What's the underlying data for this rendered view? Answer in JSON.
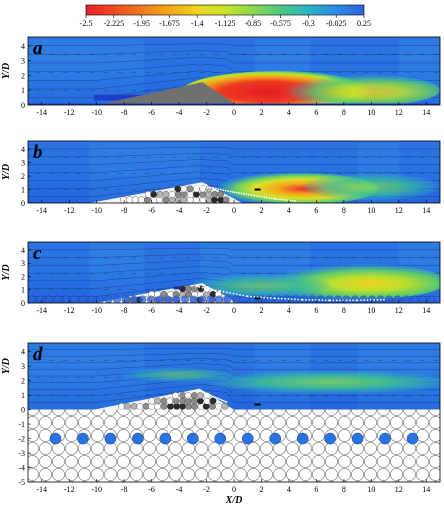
{
  "colorbar": {
    "ticks": [
      "-2.5",
      "-2.225",
      "-1.95",
      "-1.675",
      "-1.4",
      "-1.125",
      "-0.85",
      "-0.575",
      "-0.3",
      "-0.025",
      "0.25"
    ],
    "colors": [
      "#e8202a",
      "#ee4a22",
      "#f27a1c",
      "#f4a81a",
      "#f2d21c",
      "#c9e22a",
      "#8cd84c",
      "#4cc880",
      "#2cb4c6",
      "#2a8ae4",
      "#2a62e0"
    ]
  },
  "axes": {
    "x_label": "X/D",
    "y_label": "Y/D",
    "x_ticks": [
      "-14",
      "-12",
      "-10",
      "-8",
      "-6",
      "-4",
      "-2",
      "0",
      "2",
      "4",
      "6",
      "8",
      "10",
      "12",
      "14"
    ],
    "y_ticks_small": [
      "0",
      "1",
      "2",
      "3",
      "4"
    ],
    "y_ticks_d": [
      "-5",
      "-4",
      "-3",
      "-2",
      "-1",
      "0",
      "1",
      "2",
      "3",
      "4"
    ]
  },
  "panels": [
    {
      "label": "a"
    },
    {
      "label": "b"
    },
    {
      "label": "c"
    },
    {
      "label": "d"
    }
  ]
}
